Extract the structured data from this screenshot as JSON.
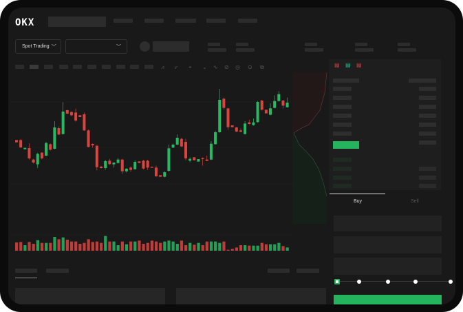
{
  "header": {
    "logo": "OKX"
  },
  "toolbar": {
    "market_type": "Spot Trading",
    "pair_select": ""
  },
  "order_panel": {
    "tabs": [
      {
        "label": "Buy",
        "active": true
      },
      {
        "label": "Sell",
        "active": false
      }
    ],
    "slider_value": 0,
    "submit_color": "#25b45e"
  },
  "icons": [
    "chevron-down-icon",
    "indicator-icon",
    "line-tool-icon",
    "brush-icon",
    "circle-icon",
    "settings-icon",
    "fullscreen-icon",
    "orderbook-both-icon",
    "orderbook-bids-icon",
    "orderbook-asks-icon"
  ],
  "colors": {
    "up": "#27b862",
    "down": "#d9443f",
    "background": "#191919"
  },
  "chart_data": {
    "type": "candlestick",
    "columns": [
      "open",
      "high",
      "low",
      "close"
    ],
    "candles": [
      [
        750,
        750,
        740,
        740
      ],
      [
        750,
        755,
        715,
        718
      ],
      [
        710,
        716,
        710,
        716
      ],
      [
        715,
        735,
        665,
        670
      ],
      [
        665,
        668,
        648,
        652
      ],
      [
        644,
        695,
        628,
        690
      ],
      [
        695,
        697,
        666,
        670
      ],
      [
        682,
        742,
        680,
        737
      ],
      [
        732,
        735,
        704,
        708
      ],
      [
        712,
        832,
        710,
        805
      ],
      [
        802,
        810,
        772,
        774
      ],
      [
        776,
        915,
        774,
        874
      ],
      [
        880,
        882,
        863,
        865
      ],
      [
        872,
        875,
        854,
        858
      ],
      [
        870,
        887,
        830,
        835
      ],
      [
        858,
        858,
        850,
        850
      ],
      [
        862,
        870,
        790,
        792
      ],
      [
        792,
        796,
        718,
        720
      ],
      [
        733,
        735,
        716,
        727
      ],
      [
        725,
        728,
        618,
        632
      ],
      [
        634,
        638,
        626,
        628
      ],
      [
        628,
        664,
        620,
        658
      ],
      [
        660,
        668,
        642,
        645
      ],
      [
        644,
        652,
        630,
        652
      ],
      [
        650,
        672,
        648,
        665
      ],
      [
        665,
        668,
        602,
        614
      ],
      [
        614,
        628,
        608,
        625
      ],
      [
        630,
        635,
        612,
        620
      ],
      [
        623,
        662,
        621,
        655
      ],
      [
        657,
        657,
        650,
        650
      ],
      [
        660,
        664,
        622,
        626
      ],
      [
        660,
        664,
        620,
        630
      ],
      [
        634,
        634,
        630,
        630
      ],
      [
        630,
        638,
        590,
        592
      ],
      [
        597,
        597,
        590,
        590
      ],
      [
        590,
        614,
        588,
        610
      ],
      [
        616,
        730,
        612,
        714
      ],
      [
        717,
        735,
        715,
        730
      ],
      [
        730,
        775,
        728,
        760
      ],
      [
        755,
        760,
        720,
        722
      ],
      [
        742,
        755,
        662,
        670
      ],
      [
        660,
        675,
        654,
        668
      ],
      [
        675,
        675,
        662,
        662
      ],
      [
        656,
        667,
        656,
        667
      ],
      [
        672,
        674,
        638,
        668
      ],
      [
        665,
        682,
        658,
        659
      ],
      [
        665,
        745,
        663,
        734
      ],
      [
        732,
        790,
        730,
        784
      ],
      [
        784,
        973,
        782,
        925
      ],
      [
        930,
        936,
        882,
        890
      ],
      [
        888,
        890,
        794,
        806
      ],
      [
        814,
        814,
        806,
        806
      ],
      [
        805,
        807,
        784,
        787
      ],
      [
        792,
        800,
        784,
        786
      ],
      [
        776,
        832,
        774,
        822
      ],
      [
        827,
        838,
        818,
        820
      ],
      [
        815,
        844,
        813,
        827
      ],
      [
        828,
        920,
        826,
        916
      ],
      [
        922,
        925,
        878,
        882
      ],
      [
        882,
        882,
        866,
        866
      ],
      [
        860,
        910,
        858,
        888
      ],
      [
        890,
        945,
        888,
        920
      ],
      [
        920,
        963,
        918,
        950
      ],
      [
        922,
        925,
        888,
        900
      ],
      [
        893,
        935,
        891,
        913
      ]
    ],
    "volume": [
      36,
      38,
      24,
      38,
      30,
      46,
      34,
      34,
      34,
      60,
      50,
      58,
      48,
      40,
      40,
      30,
      34,
      50,
      38,
      40,
      34,
      64,
      40,
      40,
      24,
      40,
      28,
      40,
      40,
      44,
      30,
      34,
      44,
      40,
      34,
      40,
      44,
      40,
      30,
      44,
      24,
      34,
      26,
      34,
      24,
      40,
      40,
      40,
      34,
      40,
      4,
      8,
      14,
      24,
      24,
      22,
      22,
      22,
      34,
      28,
      28,
      28,
      34,
      20,
      14
    ]
  }
}
